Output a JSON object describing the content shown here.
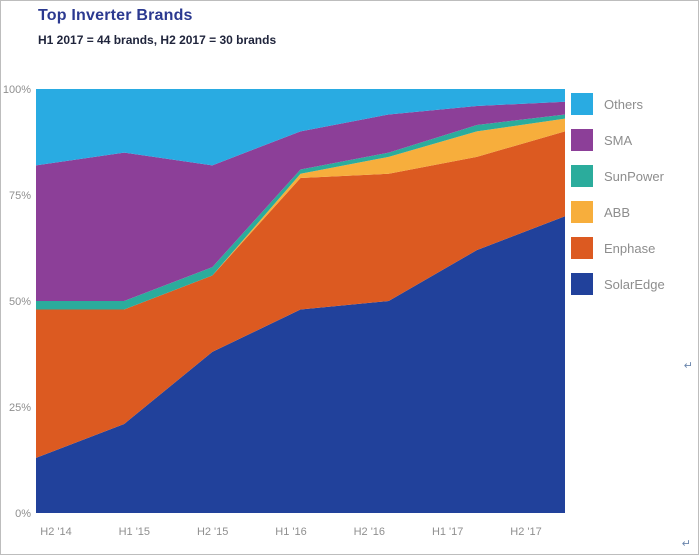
{
  "page": {
    "title": "Top Inverter Brands",
    "subtitle": "H1 2017 = 44 brands, H2 2017 = 30 brands"
  },
  "artifacts": {
    "return_mark": "↵"
  },
  "chart_data": {
    "type": "area",
    "stacked": true,
    "percent_stacked": true,
    "title": "Top Inverter Brands",
    "subtitle": "H1 2017 = 44 brands, H2 2017 = 30 brands",
    "x": [
      "H2 '14",
      "H1 '15",
      "H2 '15",
      "H1 '16",
      "H2 '16",
      "H1 '17",
      "H2 '17"
    ],
    "y_ticks": [
      "0%",
      "25%",
      "50%",
      "75%",
      "100%"
    ],
    "ylim": [
      0,
      100
    ],
    "grid": false,
    "legend_position": "right",
    "series": [
      {
        "name": "SolarEdge",
        "color": "#21419b",
        "values": [
          13,
          21,
          38,
          48,
          50,
          62,
          70
        ]
      },
      {
        "name": "Enphase",
        "color": "#dc5a21",
        "values": [
          35,
          27,
          18,
          31,
          30,
          22,
          20
        ]
      },
      {
        "name": "ABB",
        "color": "#f7ae3c",
        "values": [
          0,
          0,
          0,
          1,
          4,
          6,
          3
        ]
      },
      {
        "name": "SunPower",
        "color": "#2bac9c",
        "values": [
          2,
          2,
          2,
          1,
          1,
          1.5,
          1
        ]
      },
      {
        "name": "SMA",
        "color": "#8c3f98",
        "values": [
          32,
          35,
          24,
          9,
          9,
          4.5,
          3
        ]
      },
      {
        "name": "Others",
        "color": "#29abe2",
        "values": [
          18,
          15,
          18,
          10,
          6,
          4,
          3
        ]
      }
    ]
  }
}
